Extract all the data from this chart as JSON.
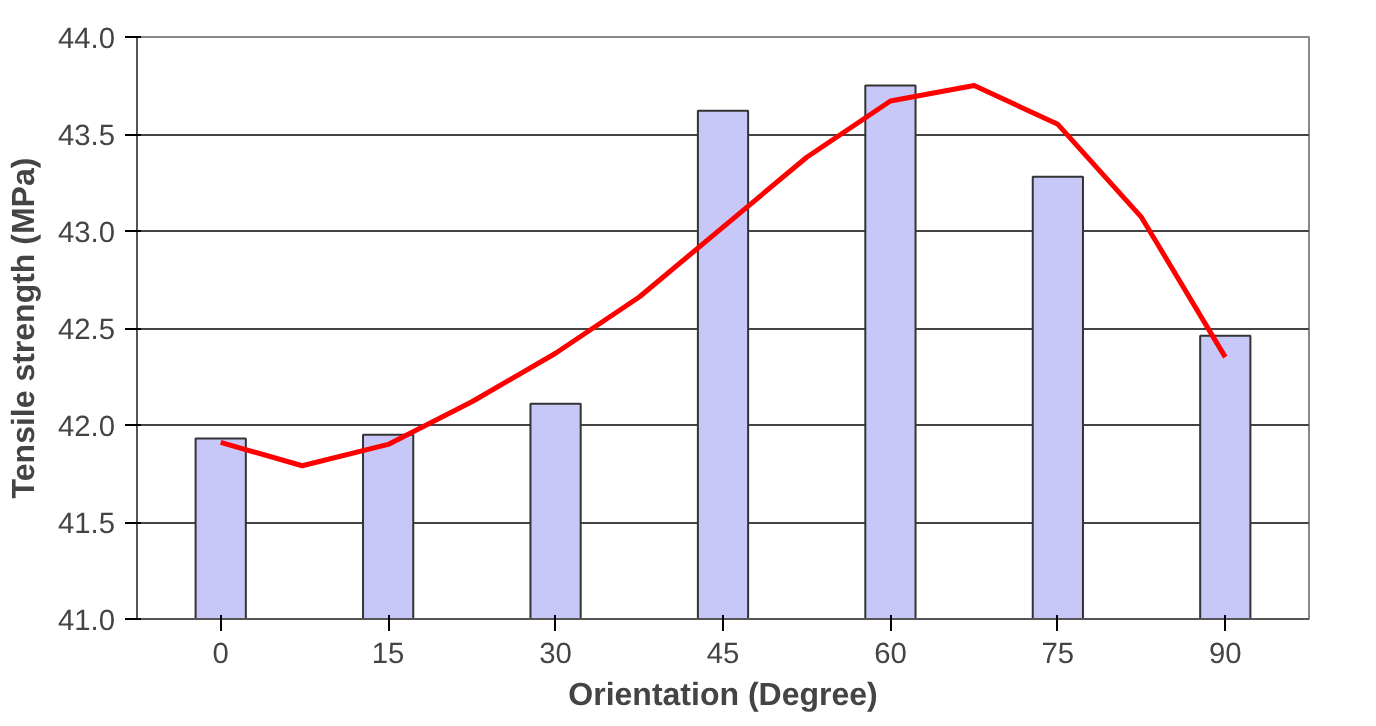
{
  "chart_data": {
    "type": "bar",
    "xlabel": "Orientation (Degree)",
    "ylabel": "Tensile strength (MPa)",
    "x": [
      0,
      15,
      30,
      45,
      60,
      75,
      90
    ],
    "xlim": [
      -7.5,
      97.5
    ],
    "xticks": [
      0,
      15,
      30,
      45,
      60,
      75,
      90
    ],
    "ylim": [
      41.0,
      44.0
    ],
    "yticks": [
      {
        "value": 41,
        "label": "41.0"
      },
      41.5,
      {
        "value": 42,
        "label": "42.0"
      },
      42.5,
      {
        "value": 43,
        "label": "43.0"
      },
      43.5,
      {
        "value": 44,
        "label": "44.0"
      }
    ],
    "grid": "y",
    "series": [
      {
        "color": "#c8c8f8",
        "values": [
          41.93,
          41.95,
          42.11,
          43.62,
          43.75,
          43.28,
          42.46
        ]
      },
      {
        "type": "line",
        "color": "#ff0000",
        "x": [
          0,
          7.3,
          15,
          22.5,
          30,
          37.5,
          45,
          52.5,
          60,
          67.5,
          75,
          82.5,
          90
        ],
        "values": [
          41.91,
          41.79,
          41.9,
          42.12,
          42.37,
          42.66,
          43.02,
          43.38,
          43.67,
          43.75,
          43.55,
          43.07,
          42.35
        ]
      }
    ]
  }
}
